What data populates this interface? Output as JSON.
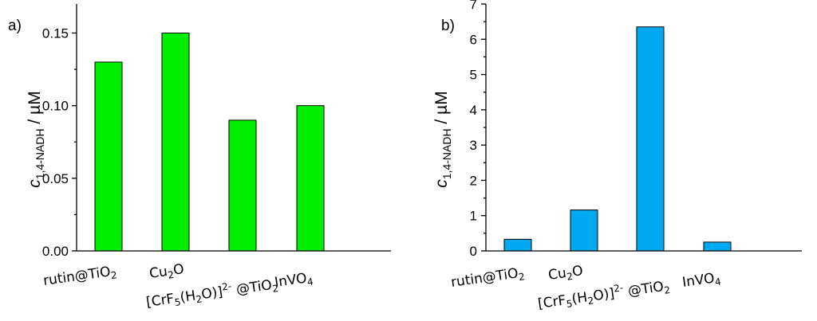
{
  "chart_data": [
    {
      "type": "bar",
      "panel_label": "a)",
      "categories": [
        {
          "base": "rutin@TiO",
          "sub": "2",
          "pre": "",
          "sup": "",
          "tail": ""
        },
        {
          "base": "Cu",
          "sub": "2",
          "pre": "",
          "sup": "",
          "tail": "O"
        },
        {
          "pre": "[CrF",
          "sub": "5",
          "base": "",
          "sup": "",
          "tail": ""
        },
        {
          "base": "InVO",
          "sub": "4",
          "pre": "",
          "sup": "",
          "tail": ""
        }
      ],
      "category_texts": [
        "rutin@TiO2",
        "Cu2O",
        "[CrF5(H2O)]2- @TiO2",
        "InVO4"
      ],
      "values": [
        0.13,
        0.15,
        0.09,
        0.1
      ],
      "ylim": [
        0,
        0.17
      ],
      "yticks": [
        0.0,
        0.05,
        0.1,
        0.15
      ],
      "ytick_labels": [
        "0.00",
        "0.05",
        "0.10",
        "0.15"
      ],
      "ylabel": "c",
      "ylabel_sub": "1,4-NADH",
      "ylabel_unit": " / µM",
      "bar_color": "#00ee00"
    },
    {
      "type": "bar",
      "panel_label": "b)",
      "category_texts": [
        "rutin@TiO2",
        "Cu2O",
        "[CrF5(H2O)]2- @TiO2",
        "InVO4"
      ],
      "values": [
        0.33,
        1.16,
        6.35,
        0.25
      ],
      "ylim": [
        0,
        7
      ],
      "yticks": [
        0,
        1,
        2,
        3,
        4,
        5,
        6,
        7
      ],
      "ytick_labels": [
        "0",
        "1",
        "2",
        "3",
        "4",
        "5",
        "6",
        "7"
      ],
      "ylabel": "c",
      "ylabel_sub": "1,4-NADH",
      "ylabel_unit": " / µM",
      "bar_color": "#00a8f0"
    }
  ]
}
